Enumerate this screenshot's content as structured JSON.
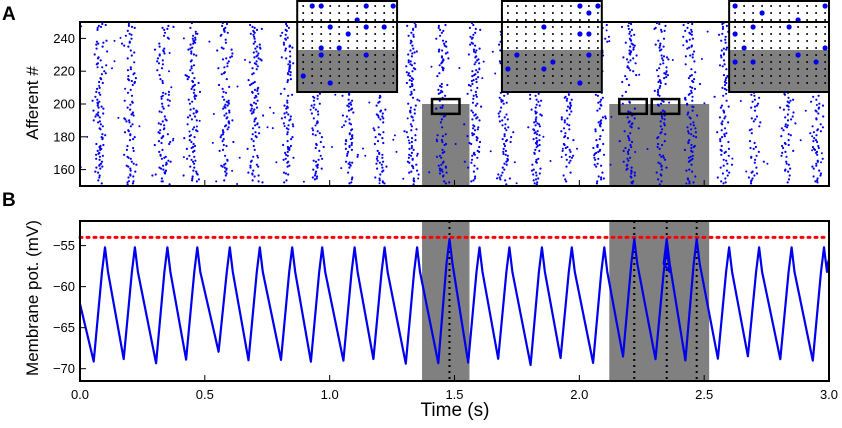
{
  "chart_data": [
    {
      "panel_label": "A",
      "type": "scatter",
      "ylabel": "Afferent #",
      "xlim": [
        0.0,
        3.0
      ],
      "ylim": [
        150,
        250
      ],
      "yticks": [
        160,
        180,
        200,
        220,
        240
      ],
      "ytick_labels": [
        "160",
        "180",
        "200",
        "220",
        "240"
      ],
      "xticks": [
        0.0,
        0.5,
        1.0,
        1.5,
        2.0,
        2.5,
        3.0
      ],
      "x_ticklabels_shown": false,
      "series": [
        {
          "kind": "spike-raster",
          "color": "#0000ee",
          "oscillation_period_s": 0.125,
          "burst_centers_s": [
            0.08,
            0.2,
            0.33,
            0.45,
            0.58,
            0.7,
            0.83,
            0.95,
            1.08,
            1.2,
            1.33,
            1.45,
            1.58,
            1.7,
            1.83,
            1.95,
            2.08,
            2.2,
            2.33,
            2.45,
            2.58,
            2.7,
            2.83,
            2.95
          ],
          "afferent_range": [
            150,
            250
          ]
        }
      ],
      "shaded_regions": [
        {
          "x_start": 1.37,
          "x_end": 1.56,
          "y_start": 150,
          "y_end": 200,
          "color": "#808080"
        },
        {
          "x_start": 2.12,
          "x_end": 2.52,
          "y_start": 150,
          "y_end": 200,
          "color": "#808080"
        }
      ],
      "highlight_boxes": [
        {
          "x_start": 1.41,
          "x_end": 1.52,
          "y_start": 194,
          "y_end": 203
        },
        {
          "x_start": 2.16,
          "x_end": 2.27,
          "y_start": 194,
          "y_end": 203
        },
        {
          "x_start": 2.29,
          "x_end": 2.4,
          "y_start": 194,
          "y_end": 203
        }
      ],
      "insets": [
        {
          "x_start": 0.87,
          "x_end": 1.27,
          "shaded_lower_half": true
        },
        {
          "x_start": 1.69,
          "x_end": 2.09,
          "shaded_lower_half": true
        },
        {
          "x_start": 2.6,
          "x_end": 3.0,
          "shaded_lower_half": true
        }
      ]
    },
    {
      "panel_label": "B",
      "type": "line",
      "xlabel": "Time (s)",
      "ylabel": "Membrane pot. (mV)",
      "xlim": [
        0.0,
        3.0
      ],
      "ylim": [
        -71.5,
        -52.0
      ],
      "xticks": [
        0.0,
        0.5,
        1.0,
        1.5,
        2.0,
        2.5,
        3.0
      ],
      "xtick_labels": [
        "0.0",
        "0.5",
        "1.0",
        "1.5",
        "2.0",
        "2.5",
        "3.0"
      ],
      "yticks": [
        -70,
        -65,
        -60,
        -55
      ],
      "ytick_labels": [
        "−70",
        "−65",
        "−60",
        "−55"
      ],
      "series": [
        {
          "color": "#0000ee",
          "peaks_x": [
            0.1,
            0.22,
            0.35,
            0.47,
            0.6,
            0.72,
            0.85,
            0.97,
            1.1,
            1.22,
            1.35,
            1.6,
            1.72,
            1.85,
            1.97,
            2.1,
            2.35,
            2.6,
            2.72,
            2.85,
            2.98
          ],
          "peak_y": -55.2,
          "trough_y": -69.0,
          "spike_times": [
            1.48,
            2.22,
            2.35,
            2.47
          ],
          "spike_peak_y": -54.2
        }
      ],
      "threshold": {
        "y": -54.0,
        "color": "#ff0000",
        "style": "dotted"
      },
      "spike_markers": {
        "x": [
          1.48,
          2.22,
          2.35,
          2.47
        ],
        "style": "dotted",
        "color": "#000000"
      },
      "shaded_regions": [
        {
          "x_start": 1.37,
          "x_end": 1.56,
          "color": "#808080"
        },
        {
          "x_start": 2.12,
          "x_end": 2.52,
          "color": "#808080"
        }
      ]
    }
  ]
}
